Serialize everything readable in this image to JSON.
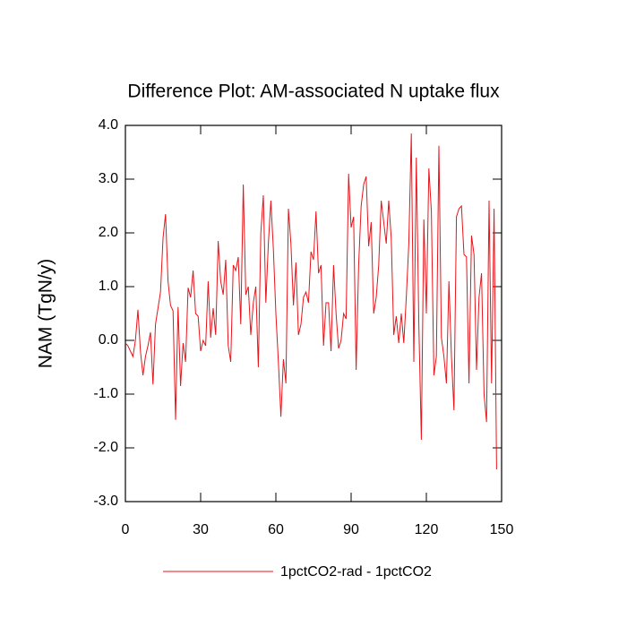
{
  "chart_data": {
    "type": "line",
    "title": "Difference Plot: AM-associated N uptake flux",
    "y_label": "NAM  (TgN/y)",
    "x": [
      0,
      1,
      2,
      3,
      4,
      5,
      6,
      7,
      8,
      9,
      10,
      11,
      12,
      13,
      14,
      15,
      16,
      17,
      18,
      19,
      20,
      21,
      22,
      23,
      24,
      25,
      26,
      27,
      28,
      29,
      30,
      31,
      32,
      33,
      34,
      35,
      36,
      37,
      38,
      39,
      40,
      41,
      42,
      43,
      44,
      45,
      46,
      47,
      48,
      49,
      50,
      51,
      52,
      53,
      54,
      55,
      56,
      57,
      58,
      59,
      60,
      61,
      62,
      63,
      64,
      65,
      66,
      67,
      68,
      69,
      70,
      71,
      72,
      73,
      74,
      75,
      76,
      77,
      78,
      79,
      80,
      81,
      82,
      83,
      84,
      85,
      86,
      87,
      88,
      89,
      90,
      91,
      92,
      93,
      94,
      95,
      96,
      97,
      98,
      99,
      100,
      101,
      102,
      103,
      104,
      105,
      106,
      107,
      108,
      109,
      110,
      111,
      112,
      113,
      114,
      115,
      116,
      117,
      118,
      119,
      120,
      121,
      122,
      123,
      124,
      125,
      126,
      127,
      128,
      129,
      130,
      131,
      132,
      133,
      134,
      135,
      136,
      137,
      138,
      139,
      140,
      141,
      142,
      143,
      144,
      145,
      146,
      147,
      148
    ],
    "series": [
      {
        "name": "1pctCO2-rad - 1pctCO2",
        "color": "#e8141a",
        "values": [
          -0.05,
          -0.1,
          -0.2,
          -0.3,
          0.0,
          0.57,
          -0.2,
          -0.65,
          -0.3,
          -0.1,
          0.15,
          -0.82,
          0.3,
          0.6,
          0.9,
          1.9,
          2.35,
          1.1,
          0.65,
          0.55,
          -1.48,
          0.62,
          -0.85,
          -0.05,
          -0.4,
          0.98,
          0.8,
          1.3,
          0.5,
          0.45,
          -0.2,
          0.0,
          -0.1,
          1.1,
          0.05,
          0.6,
          0.1,
          1.85,
          1.1,
          0.85,
          1.5,
          -0.1,
          -0.4,
          1.4,
          1.3,
          1.55,
          0.3,
          2.9,
          0.85,
          1.0,
          0.1,
          0.7,
          1.0,
          -0.5,
          2.0,
          2.7,
          0.7,
          1.8,
          2.6,
          1.7,
          0.5,
          -0.4,
          -1.42,
          -0.35,
          -0.8,
          2.45,
          1.8,
          0.65,
          1.45,
          0.1,
          0.3,
          0.8,
          0.9,
          0.7,
          1.65,
          1.5,
          2.4,
          1.25,
          1.4,
          -0.1,
          0.7,
          0.7,
          -0.2,
          1.4,
          0.5,
          -0.15,
          0.0,
          0.5,
          0.4,
          3.1,
          2.1,
          2.3,
          -0.55,
          1.4,
          2.5,
          2.9,
          3.05,
          1.75,
          2.2,
          0.5,
          0.8,
          1.4,
          2.6,
          2.2,
          1.8,
          2.6,
          1.9,
          0.1,
          0.45,
          -0.05,
          0.5,
          -0.05,
          0.8,
          1.8,
          3.85,
          -0.4,
          3.4,
          0.3,
          -1.85,
          2.25,
          0.5,
          3.2,
          2.4,
          -0.65,
          -0.3,
          3.62,
          0.05,
          -0.3,
          -0.8,
          1.1,
          -0.3,
          -1.3,
          2.3,
          2.45,
          2.5,
          1.6,
          1.55,
          -0.8,
          1.95,
          1.6,
          -0.55,
          0.8,
          1.25,
          -1.0,
          -1.52,
          2.6,
          -0.8,
          2.45,
          -2.4
        ]
      }
    ],
    "xlim": [
      0,
      150
    ],
    "xticks": [
      0,
      30,
      60,
      90,
      120,
      150
    ],
    "ylim": [
      -3,
      4
    ],
    "yticks": [
      {
        "value": -3,
        "label": "-3.0"
      },
      {
        "value": -2,
        "label": "-2.0"
      },
      {
        "value": -1,
        "label": "-1.0"
      },
      {
        "value": 0,
        "label": "0.0"
      },
      {
        "value": 1,
        "label": "1.0"
      },
      {
        "value": 2,
        "label": "2.0"
      },
      {
        "value": 3,
        "label": "3.0"
      },
      {
        "value": 4,
        "label": "4.0"
      }
    ],
    "grid": false
  }
}
